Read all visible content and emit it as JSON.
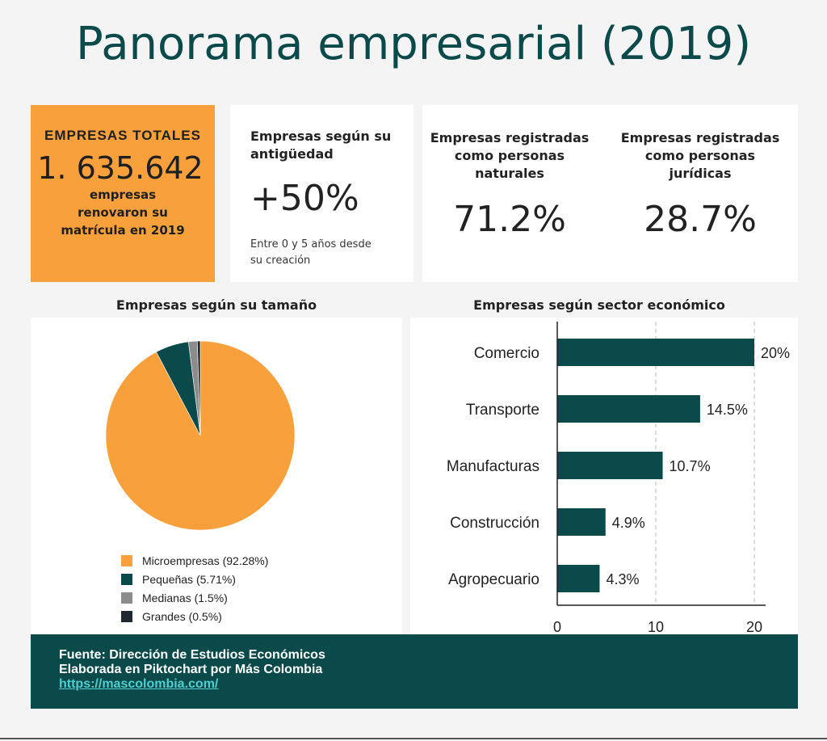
{
  "title": "Panorama empresarial (2019)",
  "cards": {
    "total": {
      "label": "EMPRESAS TOTALES",
      "value": "1. 635.642",
      "caption": "empresas renovaron su matrícula en 2019"
    },
    "antiguedad": {
      "label": "Empresas según su antigüedad",
      "value": "+50%",
      "note": "Entre 0 y 5 años desde su creación"
    },
    "naturales": {
      "label": "Empresas registradas como personas naturales",
      "value": "71.2%"
    },
    "juridicas": {
      "label": "Empresas registradas como personas jurídicas",
      "value": "28.7%"
    }
  },
  "colors": {
    "orange": "#f7a03c",
    "teal": "#0b4a4a",
    "gray": "#8c8c8c",
    "dark": "#222831"
  },
  "chart_data": [
    {
      "type": "pie",
      "title": "Empresas según su tamaño",
      "categories": [
        "Microempresas",
        "Pequeñas",
        "Medianas",
        "Grandes"
      ],
      "values": [
        92.28,
        5.71,
        1.5,
        0.5
      ],
      "legend_labels": [
        "Microempresas (92.28%)",
        "Pequeñas (5.71%)",
        "Medianas (1.5%)",
        "Grandes (0.5%)"
      ],
      "colors": [
        "#f7a03c",
        "#0b4a4a",
        "#8c8c8c",
        "#222831"
      ],
      "legend": "bottom"
    },
    {
      "type": "bar",
      "orientation": "horizontal",
      "title": "Empresas según sector económico",
      "categories": [
        "Comercio",
        "Transporte",
        "Manufacturas",
        "Construcción",
        "Agropecuario"
      ],
      "values": [
        20,
        14.5,
        10.7,
        4.9,
        4.3
      ],
      "data_labels": [
        "20%",
        "14.5%",
        "10.7%",
        "4.9%",
        "4.3%"
      ],
      "xlim": [
        0,
        20
      ],
      "xticks": [
        0,
        10,
        20
      ],
      "xtick_labels": [
        "0",
        "10",
        "20"
      ],
      "color": "#0b4a4a",
      "grid": "vertical dashed"
    }
  ],
  "footer": {
    "line1": "Fuente: Dirección de Estudios Económicos",
    "line2": "Elaborada en Piktochart por Más Colombia",
    "link": "https://mascolombia.com/"
  }
}
